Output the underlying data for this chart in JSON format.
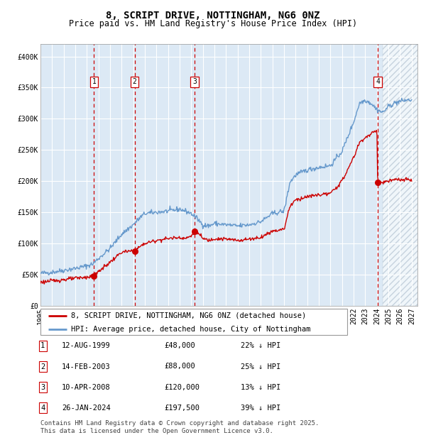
{
  "title": "8, SCRIPT DRIVE, NOTTINGHAM, NG6 0NZ",
  "subtitle": "Price paid vs. HM Land Registry's House Price Index (HPI)",
  "legend_label_red": "8, SCRIPT DRIVE, NOTTINGHAM, NG6 0NZ (detached house)",
  "legend_label_blue": "HPI: Average price, detached house, City of Nottingham",
  "footer_line1": "Contains HM Land Registry data © Crown copyright and database right 2025.",
  "footer_line2": "This data is licensed under the Open Government Licence v3.0.",
  "transactions": [
    {
      "num": 1,
      "date": "12-AUG-1999",
      "price": 48000,
      "price_str": "£48,000",
      "hpi_diff": "22% ↓ HPI",
      "x_year": 1999.61
    },
    {
      "num": 2,
      "date": "14-FEB-2003",
      "price": 88000,
      "price_str": "£88,000",
      "hpi_diff": "25% ↓ HPI",
      "x_year": 2003.12
    },
    {
      "num": 3,
      "date": "10-APR-2008",
      "price": 120000,
      "price_str": "£120,000",
      "hpi_diff": "13% ↓ HPI",
      "x_year": 2008.28
    },
    {
      "num": 4,
      "date": "26-JAN-2024",
      "price": 197500,
      "price_str": "£197,500",
      "hpi_diff": "39% ↓ HPI",
      "x_year": 2024.07
    }
  ],
  "ylim": [
    0,
    420000
  ],
  "xlim_start": 1995.0,
  "xlim_end": 2027.5,
  "yticks": [
    0,
    50000,
    100000,
    150000,
    200000,
    250000,
    300000,
    350000,
    400000
  ],
  "ytick_labels": [
    "£0",
    "£50K",
    "£100K",
    "£150K",
    "£200K",
    "£250K",
    "£300K",
    "£350K",
    "£400K"
  ],
  "xticks": [
    1995,
    1996,
    1997,
    1998,
    1999,
    2000,
    2001,
    2002,
    2003,
    2004,
    2005,
    2006,
    2007,
    2008,
    2009,
    2010,
    2011,
    2012,
    2013,
    2014,
    2015,
    2016,
    2017,
    2018,
    2019,
    2020,
    2021,
    2022,
    2023,
    2024,
    2025,
    2026,
    2027
  ],
  "background_color": "#ffffff",
  "plot_bg_color": "#dce9f5",
  "grid_color": "#ffffff",
  "red_line_color": "#cc0000",
  "blue_line_color": "#6699cc",
  "vline_color": "#cc0000",
  "marker_color": "#cc0000",
  "box_color": "#cc0000",
  "title_fontsize": 10,
  "subtitle_fontsize": 8.5,
  "tick_fontsize": 7,
  "legend_fontsize": 7.5,
  "footer_fontsize": 6.5,
  "hpi_points": [
    [
      1995.0,
      52000
    ],
    [
      1996.0,
      54000
    ],
    [
      1997.0,
      57000
    ],
    [
      1998.0,
      60000
    ],
    [
      1999.0,
      64000
    ],
    [
      1999.5,
      67000
    ],
    [
      2000.0,
      76000
    ],
    [
      2001.0,
      92000
    ],
    [
      2002.0,
      115000
    ],
    [
      2003.0,
      130000
    ],
    [
      2003.5,
      140000
    ],
    [
      2004.0,
      148000
    ],
    [
      2005.0,
      150000
    ],
    [
      2006.0,
      152000
    ],
    [
      2007.0,
      155000
    ],
    [
      2007.5,
      152000
    ],
    [
      2008.0,
      148000
    ],
    [
      2008.5,
      140000
    ],
    [
      2009.0,
      130000
    ],
    [
      2009.5,
      128000
    ],
    [
      2010.0,
      132000
    ],
    [
      2011.0,
      130000
    ],
    [
      2012.0,
      128000
    ],
    [
      2013.0,
      130000
    ],
    [
      2014.0,
      135000
    ],
    [
      2015.0,
      148000
    ],
    [
      2016.0,
      152000
    ],
    [
      2016.5,
      198000
    ],
    [
      2017.0,
      210000
    ],
    [
      2018.0,
      218000
    ],
    [
      2019.0,
      222000
    ],
    [
      2020.0,
      225000
    ],
    [
      2021.0,
      248000
    ],
    [
      2022.0,
      295000
    ],
    [
      2022.5,
      325000
    ],
    [
      2023.0,
      330000
    ],
    [
      2023.5,
      325000
    ],
    [
      2024.0,
      315000
    ],
    [
      2024.5,
      310000
    ],
    [
      2025.0,
      320000
    ],
    [
      2025.5,
      325000
    ],
    [
      2026.0,
      328000
    ],
    [
      2026.5,
      330000
    ],
    [
      2027.0,
      330000
    ]
  ],
  "red_points": [
    [
      1995.0,
      38000
    ],
    [
      1996.0,
      40000
    ],
    [
      1997.0,
      42000
    ],
    [
      1998.0,
      44000
    ],
    [
      1999.0,
      46000
    ],
    [
      1999.61,
      48000
    ],
    [
      2000.0,
      55000
    ],
    [
      2001.0,
      70000
    ],
    [
      2002.0,
      86000
    ],
    [
      2003.0,
      88000
    ],
    [
      2003.12,
      88000
    ],
    [
      2003.5,
      94000
    ],
    [
      2004.0,
      100000
    ],
    [
      2005.0,
      105000
    ],
    [
      2006.0,
      108000
    ],
    [
      2007.0,
      110000
    ],
    [
      2007.5,
      108000
    ],
    [
      2008.0,
      112000
    ],
    [
      2008.28,
      120000
    ],
    [
      2008.5,
      118000
    ],
    [
      2009.0,
      108000
    ],
    [
      2009.5,
      105000
    ],
    [
      2010.0,
      108000
    ],
    [
      2011.0,
      107000
    ],
    [
      2012.0,
      105000
    ],
    [
      2013.0,
      107000
    ],
    [
      2014.0,
      110000
    ],
    [
      2015.0,
      120000
    ],
    [
      2016.0,
      123000
    ],
    [
      2016.5,
      160000
    ],
    [
      2017.0,
      170000
    ],
    [
      2018.0,
      175000
    ],
    [
      2019.0,
      178000
    ],
    [
      2020.0,
      180000
    ],
    [
      2021.0,
      200000
    ],
    [
      2022.0,
      238000
    ],
    [
      2022.5,
      262000
    ],
    [
      2023.0,
      270000
    ],
    [
      2023.5,
      275000
    ],
    [
      2024.0,
      283000
    ],
    [
      2024.07,
      197500
    ],
    [
      2024.5,
      198000
    ],
    [
      2025.0,
      200000
    ],
    [
      2025.5,
      202000
    ],
    [
      2026.0,
      202000
    ],
    [
      2026.5,
      202000
    ],
    [
      2027.0,
      202000
    ]
  ],
  "hatch_start": 2024.5
}
